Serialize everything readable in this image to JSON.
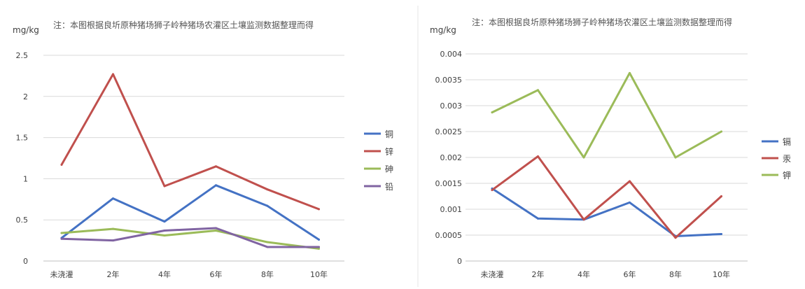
{
  "chart_data": [
    {
      "type": "line",
      "title": "注：本图根据良圻原种猪场狮子岭种猪场农灌区土壤监测数据整理而得",
      "ylabel": "mg/kg",
      "xlabel": "",
      "categories": [
        "未浇灌",
        "2年",
        "4年",
        "6年",
        "8年",
        "10年"
      ],
      "ylim": [
        0,
        2.5
      ],
      "yticks": [
        "0",
        "0.5",
        "1",
        "1.5",
        "2",
        "2.5"
      ],
      "ytick_values": [
        0,
        0.5,
        1,
        1.5,
        2,
        2.5
      ],
      "grid": true,
      "legend_position": "right",
      "series": [
        {
          "name": "铜",
          "color": "#4472c4",
          "values": [
            0.28,
            0.76,
            0.48,
            0.92,
            0.67,
            0.26
          ]
        },
        {
          "name": "锌",
          "color": "#c0504d",
          "values": [
            1.17,
            2.27,
            0.91,
            1.15,
            0.87,
            0.63
          ]
        },
        {
          "name": "砷",
          "color": "#9bbb59",
          "values": [
            0.34,
            0.39,
            0.31,
            0.37,
            0.23,
            0.15
          ]
        },
        {
          "name": "铅",
          "color": "#8064a2",
          "values": [
            0.27,
            0.25,
            0.37,
            0.4,
            0.17,
            0.17
          ]
        }
      ]
    },
    {
      "type": "line",
      "title": "注：本图根据良圻原种猪场狮子岭种猪场农灌区土壤监测数据整理而得",
      "ylabel": "mg/kg",
      "xlabel": "",
      "categories": [
        "未浇灌",
        "2年",
        "4年",
        "6年",
        "8年",
        "10年"
      ],
      "ylim": [
        0,
        0.004
      ],
      "yticks": [
        "0",
        "0.0005",
        "0.001",
        "0.0015",
        "0.002",
        "0.0025",
        "0.003",
        "0.0035",
        "0.004"
      ],
      "ytick_values": [
        0,
        0.0005,
        0.001,
        0.0015,
        0.002,
        0.0025,
        0.003,
        0.0035,
        0.004
      ],
      "grid": true,
      "legend_position": "right",
      "series": [
        {
          "name": "镉",
          "color": "#4472c4",
          "values": [
            0.0014,
            0.00082,
            0.0008,
            0.00113,
            0.00048,
            0.00052
          ]
        },
        {
          "name": "汞",
          "color": "#c0504d",
          "values": [
            0.00137,
            0.00202,
            0.0008,
            0.00154,
            0.00045,
            0.00125
          ]
        },
        {
          "name": "钾",
          "color": "#9bbb59",
          "values": [
            0.00287,
            0.0033,
            0.002,
            0.00363,
            0.002,
            0.0025
          ]
        }
      ]
    }
  ]
}
